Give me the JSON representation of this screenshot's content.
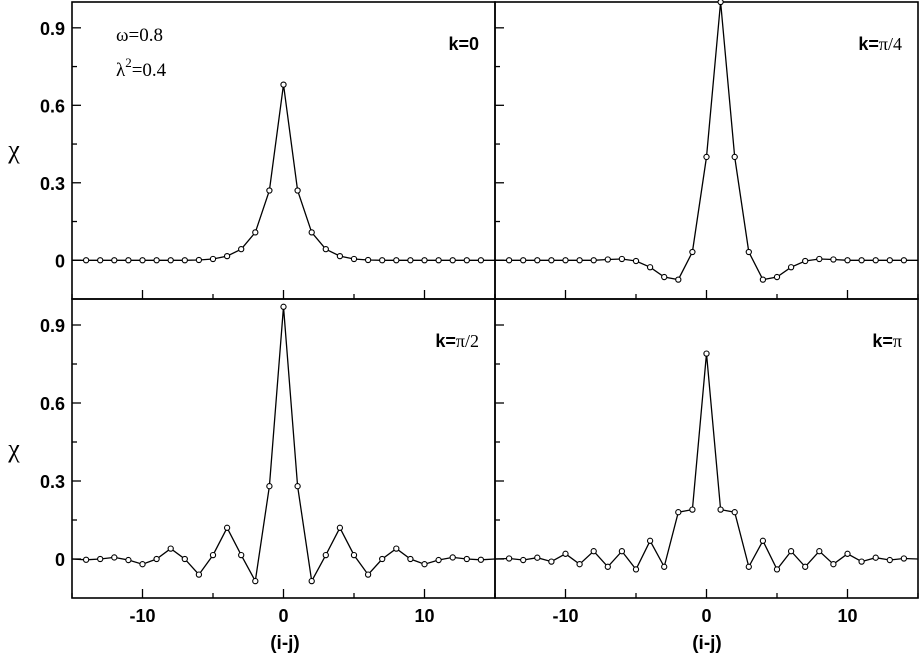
{
  "chart_data": {
    "type": "line",
    "layout": "2x2 grid, shared axes",
    "xlabel": "(i-j)",
    "ylabel": "χ",
    "xlim": [
      -15,
      15
    ],
    "ylim": [
      -0.15,
      1.0
    ],
    "xticks": [
      -10,
      0,
      10
    ],
    "xtick_labels": [
      "-10",
      "0",
      "10"
    ],
    "yticks": [
      0,
      0.3,
      0.6,
      0.9
    ],
    "ytick_labels": [
      "0",
      "0.3",
      "0.6",
      "0.9"
    ],
    "params": {
      "omega": "ω=0.8",
      "lambda_sym": "λ",
      "lambda_sup": "2",
      "lambda_val": "=0.4"
    },
    "x": [
      -15,
      -14,
      -13,
      -12,
      -11,
      -10,
      -9,
      -8,
      -7,
      -6,
      -5,
      -4,
      -3,
      -2,
      -1,
      0,
      1,
      2,
      3,
      4,
      5,
      6,
      7,
      8,
      9,
      10,
      11,
      12,
      13,
      14,
      15
    ],
    "panels": [
      {
        "label_k": "k=",
        "label_value": "0",
        "values": [
          0,
          0,
          0,
          0,
          0,
          0,
          0,
          0,
          0,
          0.001,
          0.005,
          0.016,
          0.043,
          0.108,
          0.27,
          0.68,
          0.27,
          0.108,
          0.043,
          0.016,
          0.005,
          0.001,
          0,
          0,
          0,
          0,
          0,
          0,
          0,
          0,
          0
        ]
      },
      {
        "label_k": "k=",
        "label_value": "π/4",
        "values": [
          0,
          0,
          0,
          0,
          0,
          0,
          0,
          0,
          0.003,
          0.005,
          -0.003,
          -0.027,
          -0.065,
          -0.075,
          0.032,
          0.4,
          1.0,
          0.4,
          0.032,
          -0.075,
          -0.065,
          -0.027,
          -0.003,
          0.005,
          0.003,
          0,
          0,
          0,
          0,
          0,
          0
        ]
      },
      {
        "label_k": "k=",
        "label_value": "π/2",
        "values": [
          0,
          -0.003,
          0,
          0.006,
          -0.004,
          -0.02,
          0,
          0.04,
          0,
          -0.06,
          0.015,
          0.12,
          0.015,
          -0.085,
          0.28,
          0.97,
          0.28,
          -0.085,
          0.015,
          0.12,
          0.015,
          -0.06,
          0,
          0.04,
          0,
          -0.02,
          -0.004,
          0.006,
          0,
          -0.003,
          0
        ]
      },
      {
        "label_k": "k=",
        "label_value": "π",
        "values": [
          0,
          0.002,
          -0.004,
          0.005,
          -0.01,
          0.02,
          -0.02,
          0.03,
          -0.03,
          0.03,
          -0.04,
          0.07,
          -0.03,
          0.18,
          0.19,
          0.79,
          0.19,
          0.18,
          -0.03,
          0.07,
          -0.04,
          0.03,
          -0.03,
          0.03,
          -0.02,
          0.02,
          -0.01,
          0.005,
          -0.004,
          0.002,
          0
        ]
      }
    ]
  }
}
